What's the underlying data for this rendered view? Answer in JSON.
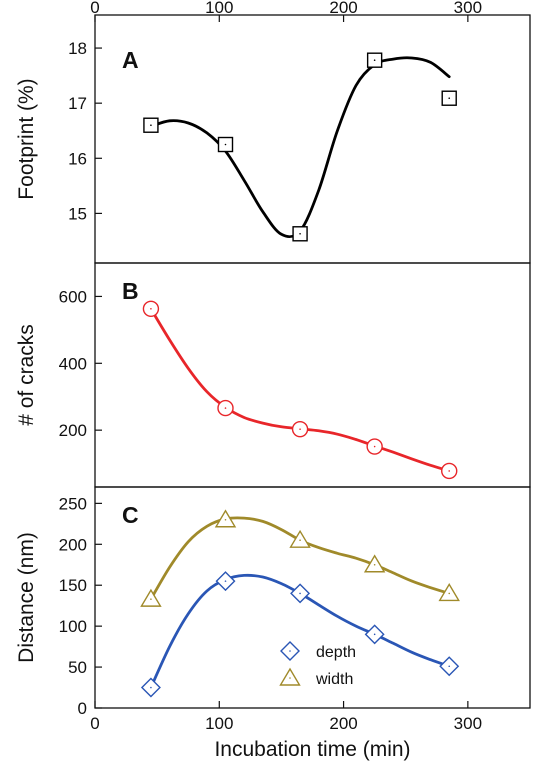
{
  "chart_data": [
    {
      "type": "scatter",
      "panel_label": "A",
      "ylabel": "Footprint (%)",
      "xlim": [
        0,
        350
      ],
      "ylim": [
        14.1,
        18.6
      ],
      "yticks": [
        15,
        16,
        17,
        18
      ],
      "top_xticks": [
        0,
        100,
        200,
        300
      ],
      "series": [
        {
          "color": "#000000",
          "marker": "square",
          "x": [
            45,
            105,
            165,
            225,
            285
          ],
          "y": [
            16.6,
            16.25,
            14.63,
            17.78,
            17.09
          ]
        }
      ],
      "fit_curve": {
        "color": "#000000",
        "x": [
          45,
          60,
          75,
          90,
          105,
          120,
          135,
          150,
          165,
          180,
          195,
          210,
          225,
          240,
          255,
          270,
          285
        ],
        "y": [
          16.58,
          16.68,
          16.64,
          16.46,
          16.13,
          15.6,
          15.03,
          14.62,
          14.68,
          15.42,
          16.5,
          17.32,
          17.7,
          17.8,
          17.82,
          17.74,
          17.48
        ]
      }
    },
    {
      "type": "scatter",
      "panel_label": "B",
      "ylabel": "# of cracks",
      "xlim": [
        0,
        350
      ],
      "ylim": [
        30,
        700
      ],
      "yticks": [
        200,
        400,
        600
      ],
      "series": [
        {
          "color": "#e8262a",
          "marker": "circle",
          "x": [
            45,
            105,
            165,
            225,
            285
          ],
          "y": [
            563,
            266,
            203,
            151,
            78
          ]
        }
      ],
      "fit_curve": {
        "color": "#e8262a",
        "x": [
          45,
          60,
          75,
          90,
          105,
          120,
          135,
          150,
          165,
          180,
          195,
          210,
          225,
          240,
          255,
          270,
          285
        ],
        "y": [
          563,
          470,
          385,
          315,
          268,
          238,
          221,
          210,
          204,
          198,
          188,
          172,
          153,
          134,
          114,
          95,
          78
        ]
      }
    },
    {
      "type": "scatter",
      "panel_label": "C",
      "ylabel": "Distance (nm)",
      "xlabel": "Incubation time (min)",
      "xlim": [
        0,
        350
      ],
      "ylim": [
        0,
        270
      ],
      "yticks": [
        0,
        50,
        100,
        150,
        200,
        250
      ],
      "xticks": [
        0,
        100,
        200,
        300
      ],
      "legend_position": "lower-center",
      "series": [
        {
          "name": "depth",
          "color": "#2a56b5",
          "marker": "diamond",
          "x": [
            45,
            105,
            165,
            225,
            285
          ],
          "y": [
            25,
            155,
            140,
            90,
            51
          ]
        },
        {
          "name": "width",
          "color": "#a08a2a",
          "marker": "triangle",
          "x": [
            45,
            105,
            165,
            225,
            285
          ],
          "y": [
            133,
            230,
            205,
            175,
            140
          ]
        }
      ],
      "fit_curves": [
        {
          "color": "#2a56b5",
          "x": [
            45,
            60,
            75,
            90,
            105,
            120,
            135,
            150,
            165,
            180,
            195,
            210,
            225,
            240,
            255,
            270,
            285
          ],
          "y": [
            25,
            75,
            115,
            143,
            157,
            162,
            160,
            152,
            140,
            126,
            112,
            100,
            90,
            79,
            68,
            59,
            51
          ]
        },
        {
          "color": "#a08a2a",
          "x": [
            45,
            60,
            75,
            90,
            105,
            120,
            135,
            150,
            165,
            180,
            195,
            210,
            225,
            240,
            255,
            270,
            285
          ],
          "y": [
            133,
            172,
            203,
            222,
            231,
            232,
            228,
            218,
            205,
            196,
            189,
            183,
            175,
            165,
            155,
            147,
            140
          ]
        }
      ]
    }
  ]
}
